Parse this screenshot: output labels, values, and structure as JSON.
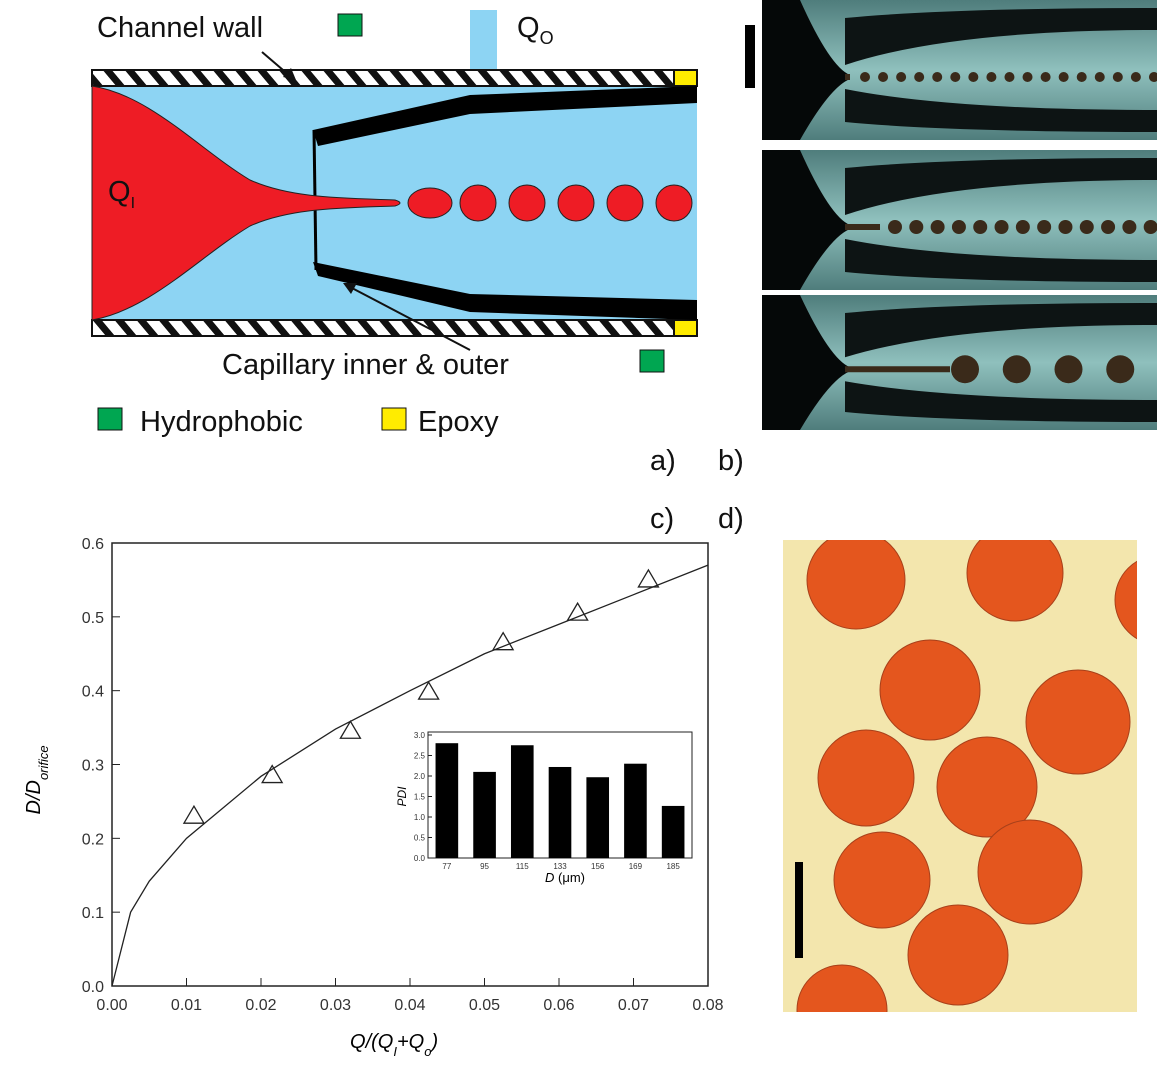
{
  "diagram": {
    "channel_wall": "Channel wall",
    "outer_flow": {
      "main": "Q",
      "sub": "O"
    },
    "inner_flow": {
      "main": "Q",
      "sub": "I"
    },
    "capillary": "Capillary inner & outer",
    "legend": {
      "hydrophobic": "Hydrophobic",
      "epoxy": "Epoxy"
    }
  },
  "panel_labels": [
    "a)",
    "b)",
    "c)",
    "d)"
  ],
  "chart_data": [
    {
      "type": "scatter",
      "xlabel": [
        {
          "text": "Q"
        },
        {
          "text": "/(Q"
        },
        {
          "text": "I",
          "sub": true
        },
        {
          "text": "+Q"
        },
        {
          "text": "o",
          "sub": true
        },
        {
          "text": ")"
        }
      ],
      "ylabel": [
        {
          "text": "D/D"
        },
        {
          "text": "orifice",
          "sub": true
        }
      ],
      "series": [
        {
          "marker": "triangle",
          "color": "#222222",
          "x": [
            0.011,
            0.0215,
            0.032,
            0.0425,
            0.0525,
            0.0625,
            0.072
          ],
          "values": [
            0.23,
            0.285,
            0.345,
            0.398,
            0.465,
            0.505,
            0.55
          ]
        },
        {
          "style": "line",
          "color": "#222222",
          "x": [
            0,
            0.0025,
            0.005,
            0.01,
            0.02,
            0.03,
            0.04,
            0.05,
            0.06,
            0.07,
            0.08
          ],
          "values": [
            0,
            0.1,
            0.142,
            0.2,
            0.284,
            0.348,
            0.4,
            0.45,
            0.49,
            0.53,
            0.57
          ]
        }
      ],
      "xlim": [
        0,
        0.08
      ],
      "xticks": [
        {
          "value": 0,
          "label": "0.00"
        },
        0.01,
        0.02,
        0.03,
        0.04,
        0.05,
        0.06,
        0.07,
        0.08
      ],
      "ylim": [
        0,
        0.6
      ],
      "yticks": [
        {
          "value": 0,
          "label": "0.0"
        },
        0.1,
        0.2,
        0.3,
        0.4,
        0.5,
        0.6
      ]
    },
    {
      "type": "bar",
      "color": "#000000",
      "xlabel": [
        {
          "text": "D",
          "italic": true
        },
        {
          "text": " (μm)"
        }
      ],
      "ylabel": "PDI",
      "categories": [
        "77",
        "95",
        "115",
        "133",
        "156",
        "169",
        "185"
      ],
      "values": [
        2.8,
        2.1,
        2.75,
        2.22,
        1.97,
        2.3,
        1.27
      ],
      "ylim": [
        0,
        3
      ],
      "yticks": [
        {
          "value": 0,
          "label": "0.0"
        },
        0.5,
        {
          "value": 1,
          "label": "1.0"
        },
        1.5,
        {
          "value": 2,
          "label": "2.0"
        },
        2.5,
        {
          "value": 3,
          "label": "3.0"
        }
      ]
    }
  ]
}
